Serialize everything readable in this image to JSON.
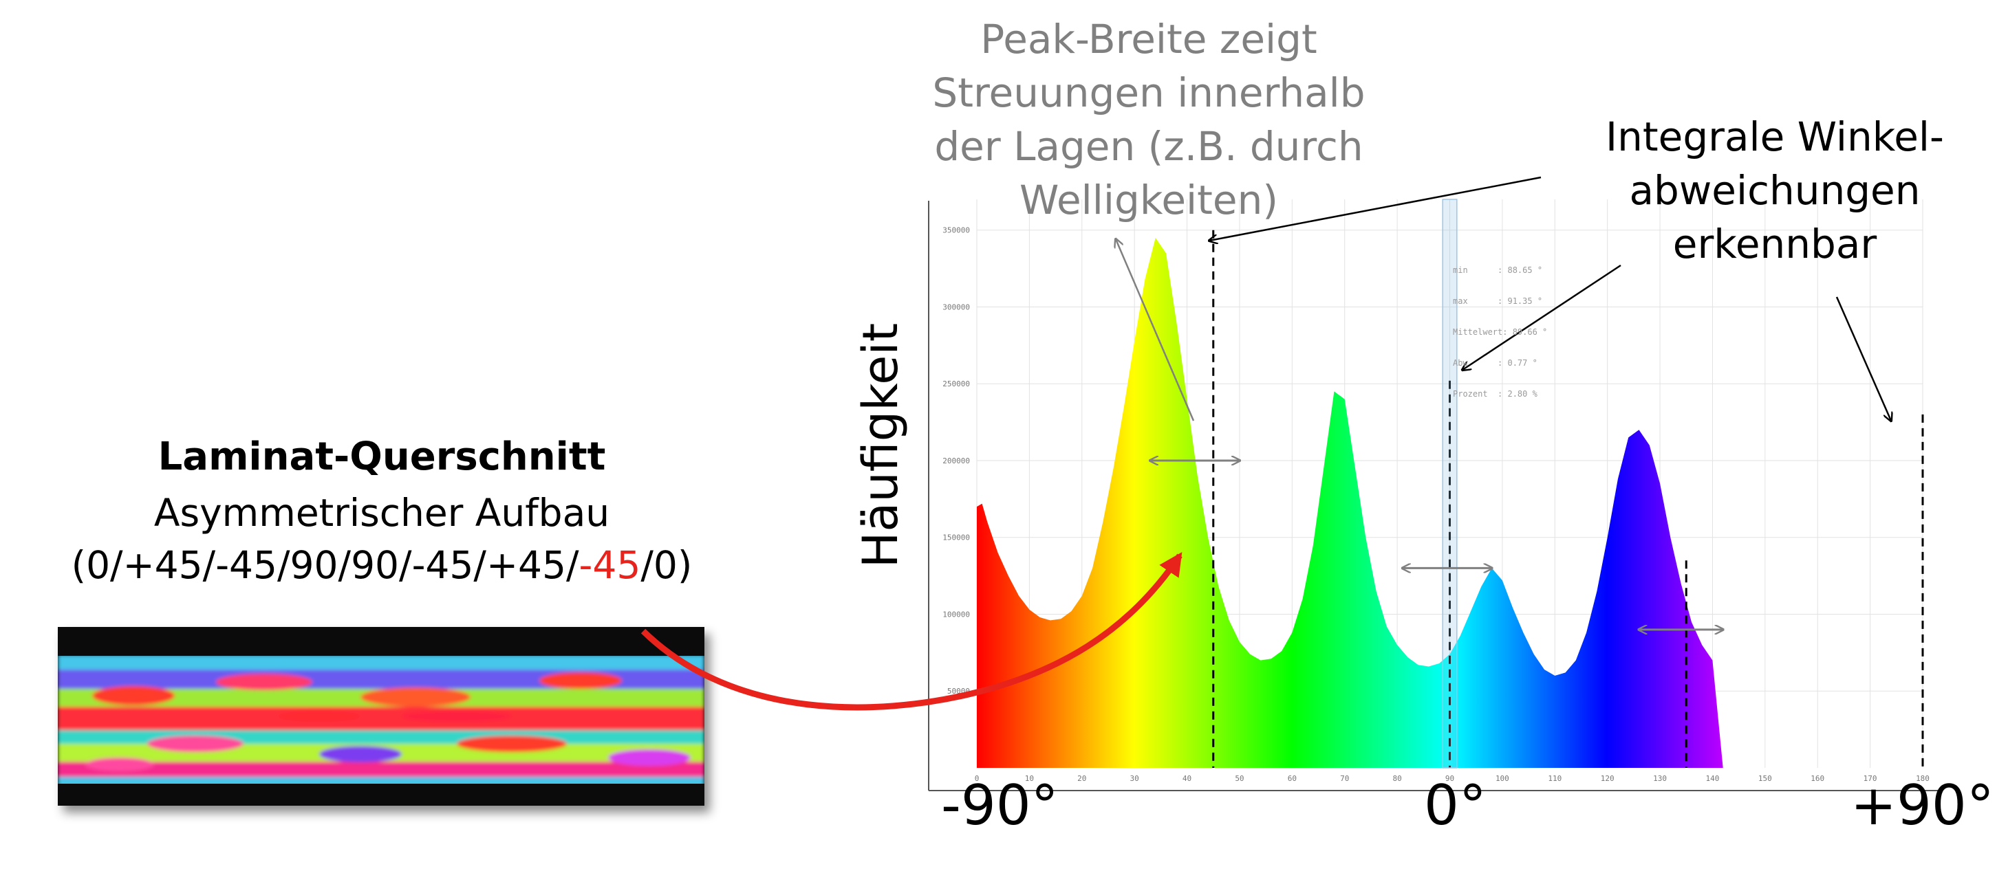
{
  "laminate": {
    "title": "Laminat-Querschnitt",
    "subtitle": "Asymmetrischer Aufbau",
    "sequence_prefix": "(0/+45/-45/90/90/-45/+45/",
    "sequence_highlight": "-45",
    "sequence_suffix": "/0)",
    "highlight_color": "#e8231c"
  },
  "annotations": {
    "peak_width": [
      "Peak-Breite zeigt",
      "Streuungen innerhalb",
      "der Lagen (z.B. durch",
      "Welligkeiten)"
    ],
    "integral": [
      "Integrale Winkel-",
      "abweichungen",
      "erkennbar"
    ]
  },
  "axis_labels": {
    "ylabel": "Häufigkeit",
    "big_ticks": [
      "-90°",
      "0°",
      "+90°"
    ]
  },
  "stats_box": [
    "min      : 88.65 °",
    "max      : 91.35 °",
    "Mittelwert: 89.66 °",
    "Abw      : 0.77 °",
    "Prozent  : 2.80 %"
  ],
  "chart_data": {
    "type": "area",
    "xlabel": "",
    "ylabel": "Häufigkeit",
    "xlim": [
      0,
      180
    ],
    "ylim": [
      0,
      370000
    ],
    "xticks": [
      0,
      10,
      20,
      30,
      40,
      50,
      60,
      70,
      80,
      90,
      100,
      110,
      120,
      130,
      140,
      150,
      160,
      170,
      180
    ],
    "yticks": [
      50000,
      100000,
      150000,
      200000,
      250000,
      300000,
      350000
    ],
    "grid": true,
    "colormap": "hue rainbow red-yellow-green-cyan-blue-magenta-red over 0 to 180",
    "x": [
      0,
      1,
      2,
      4,
      6,
      8,
      10,
      12,
      14,
      16,
      18,
      20,
      22,
      24,
      26,
      28,
      30,
      32,
      34,
      36,
      38,
      40,
      42,
      44,
      46,
      48,
      50,
      52,
      54,
      56,
      58,
      60,
      62,
      64,
      66,
      68,
      70,
      72,
      74,
      76,
      78,
      80,
      82,
      84,
      86,
      88,
      90,
      92,
      94,
      96,
      98,
      100,
      102,
      104,
      106,
      108,
      110,
      112,
      114,
      116,
      118,
      120,
      122,
      124,
      126,
      128,
      130,
      132,
      134,
      136,
      138,
      140,
      142,
      144,
      146,
      148,
      150,
      152,
      154,
      156,
      158,
      160,
      162,
      164,
      166,
      168,
      170,
      172,
      174,
      176,
      178,
      180
    ],
    "y": [
      170000,
      172000,
      160000,
      140000,
      125000,
      112000,
      103000,
      98000,
      96000,
      97000,
      102000,
      112000,
      130000,
      160000,
      195000,
      235000,
      278000,
      318000,
      345000,
      335000,
      290000,
      240000,
      190000,
      150000,
      118000,
      96000,
      82000,
      74000,
      70000,
      71000,
      76000,
      88000,
      110000,
      145000,
      195000,
      245000,
      240000,
      195000,
      150000,
      115000,
      92000,
      80000,
      72000,
      67000,
      66000,
      68000,
      74000,
      86000,
      102000,
      118000,
      130000,
      122000,
      104000,
      88000,
      74000,
      64000,
      60000,
      62000,
      70000,
      88000,
      115000,
      150000,
      188000,
      215000,
      220000,
      210000,
      185000,
      150000,
      120000,
      95000,
      80000,
      70000,
      0,
      0,
      0,
      0,
      0,
      0,
      0,
      0,
      0,
      0,
      0,
      0,
      0,
      0,
      0,
      0,
      0,
      0,
      0,
      0
    ]
  }
}
